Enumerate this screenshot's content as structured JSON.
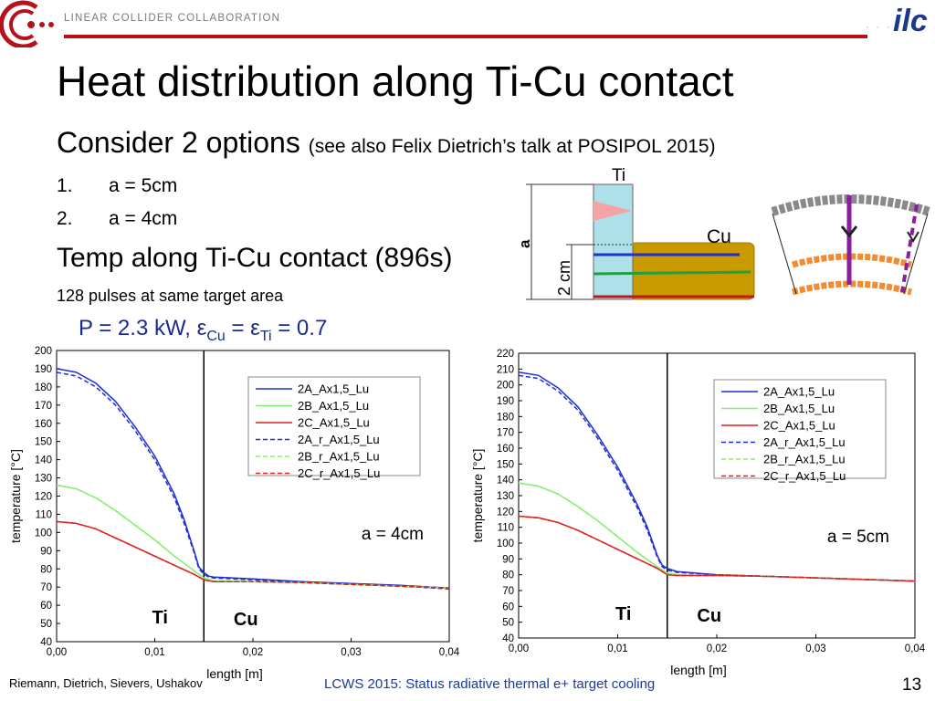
{
  "header": {
    "org_name": "LINEAR COLLIDER COLLABORATION",
    "logo_text": "ilc"
  },
  "title": "Heat distribution along Ti-Cu contact",
  "subtitle": {
    "main": "Consider 2 options",
    "note": "(see also Felix Dietrich’s talk at POSIPOL 2015)"
  },
  "options": [
    {
      "num": "1.",
      "text": "a = 5cm"
    },
    {
      "num": "2.",
      "text": "a = 4cm"
    }
  ],
  "temp_heading": "Temp along Ti-Cu contact (896s)",
  "pulses": "128 pulses at same target area",
  "params": {
    "p": "P = 2.3 kW, ",
    "eps": "ε",
    "cu": "Cu",
    "eq1": " = ",
    "ti": "Ti",
    "eq2": " = 0.7"
  },
  "schematic": {
    "ti_label": "Ti",
    "cu_label": "Cu",
    "a_label": "a",
    "dim_label": "2 cm"
  },
  "colors": {
    "blue": "#1f2fd0",
    "green": "#86ee70",
    "red": "#e02020",
    "ti_block": "#aee0ea",
    "cu_block": "#c89a00",
    "brand_red": "#b5121b"
  },
  "footer": {
    "authors": "Riemann, Dietrich, Sievers, Ushakov",
    "conference": "LCWS 2015:  Status radiative thermal e+ target cooling",
    "page_number": "13"
  },
  "chart_data": [
    {
      "type": "line",
      "ylabel": "temperature [°C]",
      "xlabel": "length [m]",
      "xlim": [
        0,
        0.04
      ],
      "ylim": [
        40,
        200
      ],
      "xticks": [
        "0,00",
        "0,01",
        "0,02",
        "0,03",
        "0,04"
      ],
      "yticks": [
        "40",
        "50",
        "60",
        "70",
        "80",
        "90",
        "100",
        "110",
        "120",
        "130",
        "140",
        "150",
        "160",
        "170",
        "180",
        "190",
        "200"
      ],
      "boundary_x": 0.015,
      "annotation": "a = 4cm",
      "region_labels": [
        "Ti",
        "Cu"
      ],
      "legend_position": "top-right",
      "series": [
        {
          "name": "2A_Ax1,5_Lu",
          "style": "solid",
          "color": "blue",
          "x": [
            0,
            0.002,
            0.004,
            0.006,
            0.008,
            0.01,
            0.012,
            0.013,
            0.014,
            0.0145,
            0.015,
            0.0155,
            0.016,
            0.02,
            0.025,
            0.03,
            0.035,
            0.04
          ],
          "y": [
            190,
            188,
            182,
            172,
            158,
            142,
            121,
            107,
            90,
            81,
            78,
            76,
            75.5,
            74.5,
            73,
            72,
            71,
            69.5
          ]
        },
        {
          "name": "2B_Ax1,5_Lu",
          "style": "solid",
          "color": "green",
          "x": [
            0,
            0.002,
            0.004,
            0.006,
            0.008,
            0.01,
            0.012,
            0.014,
            0.015,
            0.016,
            0.02,
            0.025,
            0.03,
            0.035,
            0.04
          ],
          "y": [
            126,
            124,
            119,
            112,
            104,
            96,
            87,
            79,
            75,
            73.5,
            73,
            72.5,
            71.5,
            70.5,
            69.5
          ]
        },
        {
          "name": "2C_Ax1,5_Lu",
          "style": "solid",
          "color": "red",
          "x": [
            0,
            0.002,
            0.004,
            0.006,
            0.008,
            0.01,
            0.012,
            0.014,
            0.015,
            0.016,
            0.02,
            0.025,
            0.03,
            0.035,
            0.04
          ],
          "y": [
            106,
            105,
            102,
            97,
            92,
            87,
            82,
            77,
            74,
            73,
            73,
            72.5,
            71.5,
            70.5,
            69.5
          ]
        },
        {
          "name": "2A_r_Ax1,5_Lu",
          "style": "dashed",
          "color": "blue",
          "x": [
            0,
            0.002,
            0.004,
            0.006,
            0.008,
            0.01,
            0.012,
            0.013,
            0.014,
            0.0145,
            0.015,
            0.0155,
            0.016,
            0.02,
            0.025,
            0.03,
            0.035,
            0.04
          ],
          "y": [
            188,
            186,
            180,
            170,
            156,
            140,
            119,
            105,
            89,
            80,
            77,
            75.5,
            75,
            74,
            72.5,
            71.5,
            70.5,
            69
          ]
        },
        {
          "name": "2B_r_Ax1,5_Lu",
          "style": "dashed",
          "color": "green",
          "x": [
            0,
            0.002,
            0.004,
            0.006,
            0.008,
            0.01,
            0.012,
            0.014,
            0.015,
            0.016,
            0.02,
            0.025,
            0.03,
            0.035,
            0.04
          ],
          "y": [
            126,
            124,
            119,
            112,
            104,
            96,
            87,
            79,
            75,
            73.5,
            73,
            72.5,
            71.5,
            70.5,
            69.5
          ]
        },
        {
          "name": "2C_r_Ax1,5_Lu",
          "style": "dashed",
          "color": "red",
          "x": [
            0,
            0.002,
            0.004,
            0.006,
            0.008,
            0.01,
            0.012,
            0.014,
            0.015,
            0.016,
            0.02,
            0.025,
            0.03,
            0.035,
            0.04
          ],
          "y": [
            106,
            105,
            102,
            97,
            92,
            87,
            82,
            77,
            74,
            73,
            73,
            72.5,
            71.5,
            70.5,
            69.5
          ]
        }
      ]
    },
    {
      "type": "line",
      "ylabel": "temperature [°C]",
      "xlabel": "length [m]",
      "xlim": [
        0,
        0.04
      ],
      "ylim": [
        40,
        220
      ],
      "xticks": [
        "0,00",
        "0,01",
        "0,02",
        "0,03",
        "0,04"
      ],
      "yticks": [
        "40",
        "50",
        "60",
        "70",
        "80",
        "90",
        "100",
        "110",
        "120",
        "130",
        "140",
        "150",
        "160",
        "170",
        "180",
        "190",
        "200",
        "210",
        "220"
      ],
      "boundary_x": 0.015,
      "annotation": "a = 5cm",
      "region_labels": [
        "Ti",
        "Cu"
      ],
      "legend_position": "top-right",
      "series": [
        {
          "name": "2A_Ax1,5_Lu",
          "style": "solid",
          "color": "blue",
          "x": [
            0,
            0.002,
            0.004,
            0.006,
            0.008,
            0.01,
            0.012,
            0.013,
            0.014,
            0.0145,
            0.015,
            0.016,
            0.02,
            0.025,
            0.03,
            0.035,
            0.04
          ],
          "y": [
            208,
            206,
            198,
            186,
            168,
            148,
            124,
            110,
            92,
            86,
            84,
            82,
            80,
            79,
            78,
            77,
            76
          ]
        },
        {
          "name": "2B_Ax1,5_Lu",
          "style": "solid",
          "color": "green",
          "x": [
            0,
            0.002,
            0.004,
            0.006,
            0.008,
            0.01,
            0.012,
            0.014,
            0.015,
            0.016,
            0.02,
            0.025,
            0.03,
            0.035,
            0.04
          ],
          "y": [
            138,
            136,
            131,
            123,
            114,
            104,
            94,
            85,
            81,
            80,
            79.5,
            79,
            78,
            77,
            76
          ]
        },
        {
          "name": "2C_Ax1,5_Lu",
          "style": "solid",
          "color": "red",
          "x": [
            0,
            0.002,
            0.004,
            0.006,
            0.008,
            0.01,
            0.012,
            0.014,
            0.015,
            0.016,
            0.02,
            0.025,
            0.03,
            0.035,
            0.04
          ],
          "y": [
            117,
            116,
            113,
            108,
            102,
            96,
            90,
            84,
            80,
            79.5,
            79.5,
            79,
            78,
            77,
            76
          ]
        },
        {
          "name": "2A_r_Ax1,5_Lu",
          "style": "dashed",
          "color": "blue",
          "x": [
            0,
            0.002,
            0.004,
            0.006,
            0.008,
            0.01,
            0.012,
            0.013,
            0.014,
            0.0145,
            0.015,
            0.016,
            0.02,
            0.025,
            0.03,
            0.035,
            0.04
          ],
          "y": [
            206,
            204,
            196,
            184,
            166,
            146,
            122,
            108,
            91,
            85,
            83,
            81.5,
            80,
            79,
            78,
            77,
            76
          ]
        },
        {
          "name": "2B_r_Ax1,5_Lu",
          "style": "dashed",
          "color": "green",
          "x": [
            0,
            0.002,
            0.004,
            0.006,
            0.008,
            0.01,
            0.012,
            0.014,
            0.015,
            0.016,
            0.02,
            0.025,
            0.03,
            0.035,
            0.04
          ],
          "y": [
            138,
            136,
            131,
            123,
            114,
            104,
            94,
            85,
            81,
            80,
            79.5,
            79,
            78,
            77,
            76
          ]
        },
        {
          "name": "2C_r_Ax1,5_Lu",
          "style": "dashed",
          "color": "red",
          "x": [
            0,
            0.002,
            0.004,
            0.006,
            0.008,
            0.01,
            0.012,
            0.014,
            0.015,
            0.016,
            0.02,
            0.025,
            0.03,
            0.035,
            0.04
          ],
          "y": [
            117,
            116,
            113,
            108,
            102,
            96,
            90,
            84,
            80,
            79.5,
            79.5,
            79,
            78,
            77,
            76
          ]
        }
      ]
    }
  ]
}
